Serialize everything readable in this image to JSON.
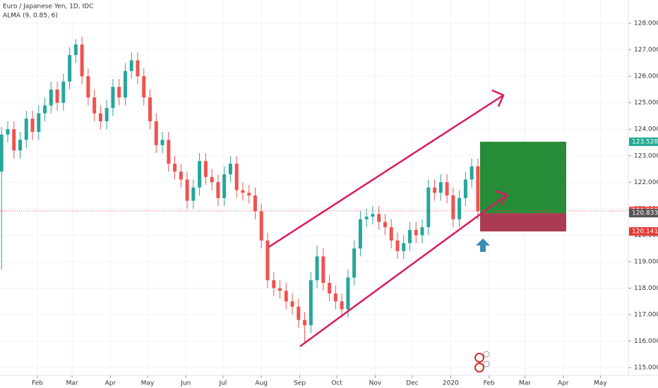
{
  "chart_data": {
    "type": "candlestick",
    "title": "Euro / Japanese Yen, 1D, IDC",
    "subtitle": "ALMA (9, 0.85, 6)",
    "up_color": "#26a69a",
    "down_color": "#ef5350",
    "grid": true,
    "x": [
      2,
      7,
      12,
      17,
      22,
      27,
      32,
      37,
      42,
      47,
      52,
      57,
      62,
      67,
      72,
      77,
      82,
      87,
      92,
      97,
      102,
      107,
      112,
      117,
      122,
      127,
      132,
      137,
      142,
      147,
      152,
      157,
      162,
      167,
      172,
      177,
      182,
      187,
      192,
      197,
      202,
      207,
      212,
      217,
      222,
      227,
      232,
      237,
      242,
      247,
      252,
      257,
      262,
      267,
      272,
      277,
      282,
      287,
      292,
      297,
      302,
      307,
      312,
      317,
      322,
      327,
      332,
      337,
      342,
      347,
      352,
      357,
      362,
      367,
      372,
      377,
      382,
      387
    ],
    "open": [
      122.4,
      123.8,
      124.0,
      123.2,
      123.6,
      124.4,
      123.9,
      124.6,
      124.9,
      125.5,
      125.0,
      125.8,
      126.8,
      127.2,
      126.0,
      125.2,
      124.6,
      124.3,
      124.8,
      125.6,
      125.2,
      126.2,
      126.6,
      126.0,
      125.2,
      124.3,
      123.4,
      123.6,
      122.7,
      122.4,
      122.1,
      121.3,
      121.8,
      122.8,
      122.2,
      122.0,
      121.4,
      122.3,
      122.7,
      121.7,
      121.6,
      121.5,
      120.9,
      119.8,
      118.3,
      118.0,
      117.9,
      117.5,
      117.3,
      116.8,
      116.6,
      118.3,
      119.2,
      118.2,
      117.8,
      117.5,
      117.2,
      118.4,
      119.5,
      120.6,
      120.7,
      120.8,
      120.5,
      120.3,
      119.8,
      119.4,
      119.7,
      120.2,
      120.0,
      120.3,
      121.8,
      121.6,
      122.0,
      121.5,
      120.6,
      121.4,
      122.1,
      122.6
    ],
    "high": [
      124.1,
      124.3,
      124.3,
      123.9,
      124.7,
      124.7,
      124.9,
      125.2,
      125.8,
      125.8,
      126.1,
      127.1,
      127.4,
      127.5,
      126.3,
      125.5,
      124.9,
      125.1,
      125.9,
      125.9,
      126.5,
      126.9,
      126.9,
      126.3,
      125.5,
      124.6,
      123.9,
      123.9,
      123.0,
      122.7,
      122.4,
      122.1,
      123.1,
      123.1,
      122.5,
      122.3,
      122.6,
      123.0,
      123.0,
      122.0,
      121.9,
      121.8,
      121.2,
      120.1,
      118.6,
      118.3,
      118.2,
      117.8,
      117.6,
      117.1,
      118.6,
      119.6,
      119.5,
      118.5,
      118.1,
      117.8,
      118.7,
      119.8,
      120.9,
      121.0,
      121.1,
      121.1,
      120.8,
      120.6,
      120.1,
      120.0,
      120.5,
      120.5,
      120.6,
      122.1,
      122.1,
      122.3,
      122.3,
      121.8,
      121.7,
      122.4,
      122.9,
      122.9
    ],
    "low": [
      118.7,
      123.5,
      122.9,
      122.9,
      123.3,
      123.6,
      123.6,
      124.3,
      124.6,
      124.7,
      124.7,
      125.5,
      126.5,
      125.7,
      124.9,
      124.3,
      124.0,
      124.0,
      124.5,
      124.9,
      124.9,
      125.9,
      125.7,
      124.9,
      124.0,
      123.1,
      123.1,
      122.4,
      122.1,
      121.8,
      121.0,
      121.0,
      121.5,
      121.9,
      121.7,
      121.1,
      121.1,
      122.0,
      121.4,
      121.3,
      121.2,
      120.6,
      119.5,
      118.0,
      117.7,
      117.6,
      117.2,
      117.0,
      116.5,
      115.9,
      116.3,
      118.0,
      117.9,
      117.5,
      117.2,
      116.9,
      116.9,
      118.1,
      119.2,
      120.3,
      120.4,
      120.2,
      120.0,
      119.5,
      119.1,
      119.1,
      119.4,
      119.7,
      119.7,
      120.0,
      121.3,
      121.3,
      121.2,
      120.3,
      120.3,
      121.1,
      121.8,
      120.6
    ],
    "close": [
      123.8,
      124.0,
      123.2,
      123.6,
      124.4,
      123.9,
      124.6,
      124.9,
      125.5,
      125.0,
      125.8,
      126.8,
      127.2,
      126.0,
      125.2,
      124.6,
      124.3,
      124.8,
      125.6,
      125.2,
      126.2,
      126.6,
      126.0,
      125.2,
      124.3,
      123.4,
      123.6,
      122.7,
      122.4,
      122.1,
      121.3,
      121.8,
      122.8,
      122.2,
      122.0,
      121.4,
      122.3,
      122.7,
      121.7,
      121.6,
      121.5,
      120.9,
      119.8,
      118.3,
      118.0,
      117.9,
      117.5,
      117.3,
      116.8,
      116.6,
      118.3,
      119.2,
      118.2,
      117.8,
      117.5,
      117.2,
      118.4,
      119.5,
      120.6,
      120.7,
      120.8,
      120.5,
      120.3,
      119.8,
      119.4,
      119.7,
      120.2,
      120.0,
      120.3,
      121.8,
      121.6,
      122.0,
      121.5,
      120.6,
      121.4,
      122.1,
      122.6,
      120.9
    ],
    "xlim": [
      0.74,
      508.6
    ],
    "xticks": [
      {
        "value": 31,
        "label": "Feb"
      },
      {
        "value": 59,
        "label": "Mar"
      },
      {
        "value": 90,
        "label": "Apr"
      },
      {
        "value": 120,
        "label": "May"
      },
      {
        "value": 151,
        "label": "Jun"
      },
      {
        "value": 181,
        "label": "Jul"
      },
      {
        "value": 212,
        "label": "Aug"
      },
      {
        "value": 243,
        "label": "Sep"
      },
      {
        "value": 273,
        "label": "Oct"
      },
      {
        "value": 304,
        "label": "Nov"
      },
      {
        "value": 334,
        "label": "Dec"
      },
      {
        "value": 365,
        "label": "2020"
      },
      {
        "value": 396,
        "label": "Feb"
      },
      {
        "value": 425,
        "label": "Mar"
      },
      {
        "value": 456,
        "label": "Apr"
      },
      {
        "value": 486,
        "label": "May"
      }
    ],
    "ylim": [
      114.71,
      128.88
    ],
    "yticks": [
      {
        "value": 115,
        "label": "115.000"
      },
      {
        "value": 116,
        "label": "116.000"
      },
      {
        "value": 117,
        "label": "117.000"
      },
      {
        "value": 118,
        "label": "118.000"
      },
      {
        "value": 119,
        "label": "119.000"
      },
      {
        "value": 120,
        "label": "120.000"
      },
      {
        "value": 121,
        "label": "121.000"
      },
      {
        "value": 122,
        "label": "122.000"
      },
      {
        "value": 123,
        "label": "123.000"
      },
      {
        "value": 124,
        "label": "124.000"
      },
      {
        "value": 125,
        "label": "125.000"
      },
      {
        "value": 126,
        "label": "126.000"
      },
      {
        "value": 127,
        "label": "127.000"
      },
      {
        "value": 128,
        "label": "128.000"
      }
    ],
    "last_price": 120.919,
    "position": {
      "target": 123.528,
      "entry": 120.833,
      "stop": 120.141
    }
  }
}
